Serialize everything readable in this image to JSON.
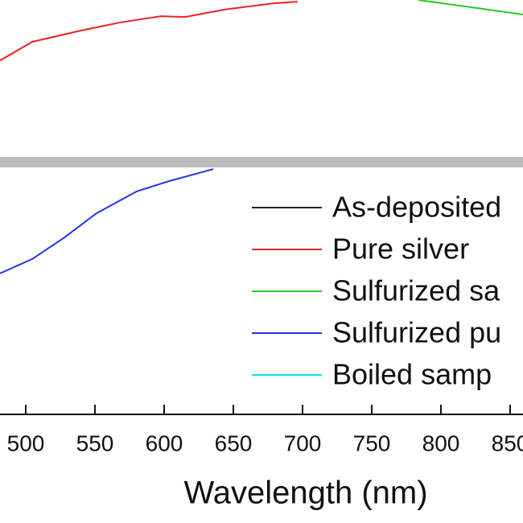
{
  "chart_data": {
    "type": "line",
    "x_label": "Wavelength (nm)",
    "xlim": [
      481.4,
      859.3
    ],
    "xticks": [
      500,
      550,
      600,
      650,
      700,
      750,
      800,
      850
    ],
    "ylim": [
      0,
      100
    ],
    "series": [
      {
        "name": "As-deposited",
        "color": "#222222",
        "x": [],
        "values": []
      },
      {
        "name": "Pure silver",
        "color": "#ee2222",
        "x": [
          481.4,
          504.7,
          539.5,
          568.6,
          597.7,
          615.1,
          644.2,
          679.0,
          696.5
        ],
        "values": [
          85.4,
          89.9,
          92.6,
          94.6,
          96.1,
          95.9,
          97.7,
          99.2,
          99.6
        ]
      },
      {
        "name": "Sulfurized sa",
        "color": "#22cc22",
        "x": [
          783.7,
          818.6,
          859.3
        ],
        "values": [
          100,
          98.4,
          96.5
        ]
      },
      {
        "name": "Sulfurized pu",
        "color": "#2233ee",
        "x": [
          481.4,
          504.7,
          528.0,
          551.0,
          580.2,
          603.5,
          635.5
        ],
        "values": [
          34.0,
          37.5,
          42.7,
          48.5,
          53.8,
          56.3,
          59.2
        ]
      },
      {
        "name": "Boiled samp",
        "color": "#00e5ff",
        "x": [],
        "values": []
      }
    ]
  }
}
